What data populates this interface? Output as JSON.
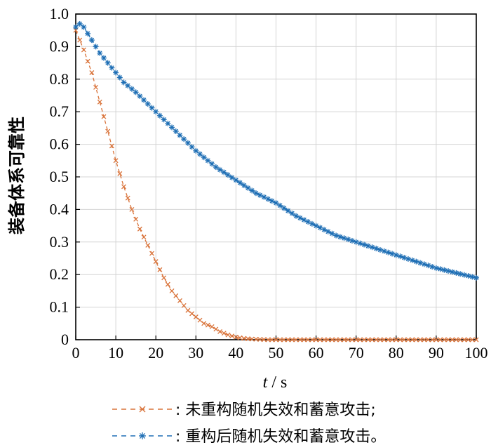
{
  "chart_data": {
    "type": "line",
    "xlabel_var": "t",
    "xlabel_sep": "/",
    "xlabel_unit": "s",
    "ylabel": "装备体系可靠性",
    "xlim": [
      0,
      100
    ],
    "ylim": [
      0,
      1.0
    ],
    "x_ticks": [
      0,
      10,
      20,
      30,
      40,
      50,
      60,
      70,
      80,
      90,
      100
    ],
    "y_ticks": [
      "0",
      "0.1",
      "0.2",
      "0.3",
      "0.4",
      "0.5",
      "0.6",
      "0.7",
      "0.8",
      "0.9",
      "1.0"
    ],
    "grid": true,
    "legend_position": "bottom",
    "series": [
      {
        "name": ": 未重构随机失效和蓄意攻击;",
        "color": "#d9733a",
        "marker": "x",
        "line_style": "dashed",
        "x": [
          0,
          2,
          4,
          6,
          8,
          10,
          12,
          14,
          16,
          18,
          20,
          22,
          24,
          26,
          28,
          30,
          32,
          34,
          36,
          38,
          40,
          42,
          44,
          46,
          48,
          50,
          55,
          60,
          70,
          80,
          90,
          100
        ],
        "values": [
          0.95,
          0.89,
          0.82,
          0.73,
          0.64,
          0.55,
          0.47,
          0.4,
          0.34,
          0.29,
          0.24,
          0.19,
          0.15,
          0.12,
          0.09,
          0.07,
          0.05,
          0.04,
          0.025,
          0.015,
          0.008,
          0.004,
          0.002,
          0.001,
          0.0,
          0.0,
          0.0,
          0.0,
          0.0,
          0.0,
          0.0,
          0.0
        ]
      },
      {
        "name": ": 重构后随机失效和蓄意攻击。",
        "color": "#1f6fb5",
        "marker": "star",
        "line_style": "dashed",
        "x": [
          0,
          1,
          2,
          4,
          6,
          8,
          10,
          12,
          15,
          20,
          25,
          30,
          35,
          40,
          45,
          50,
          55,
          60,
          65,
          70,
          75,
          80,
          85,
          90,
          95,
          100
        ],
        "values": [
          0.96,
          0.97,
          0.96,
          0.92,
          0.88,
          0.85,
          0.82,
          0.79,
          0.76,
          0.7,
          0.64,
          0.58,
          0.53,
          0.49,
          0.45,
          0.42,
          0.38,
          0.35,
          0.32,
          0.3,
          0.28,
          0.26,
          0.24,
          0.22,
          0.205,
          0.19
        ]
      }
    ]
  }
}
